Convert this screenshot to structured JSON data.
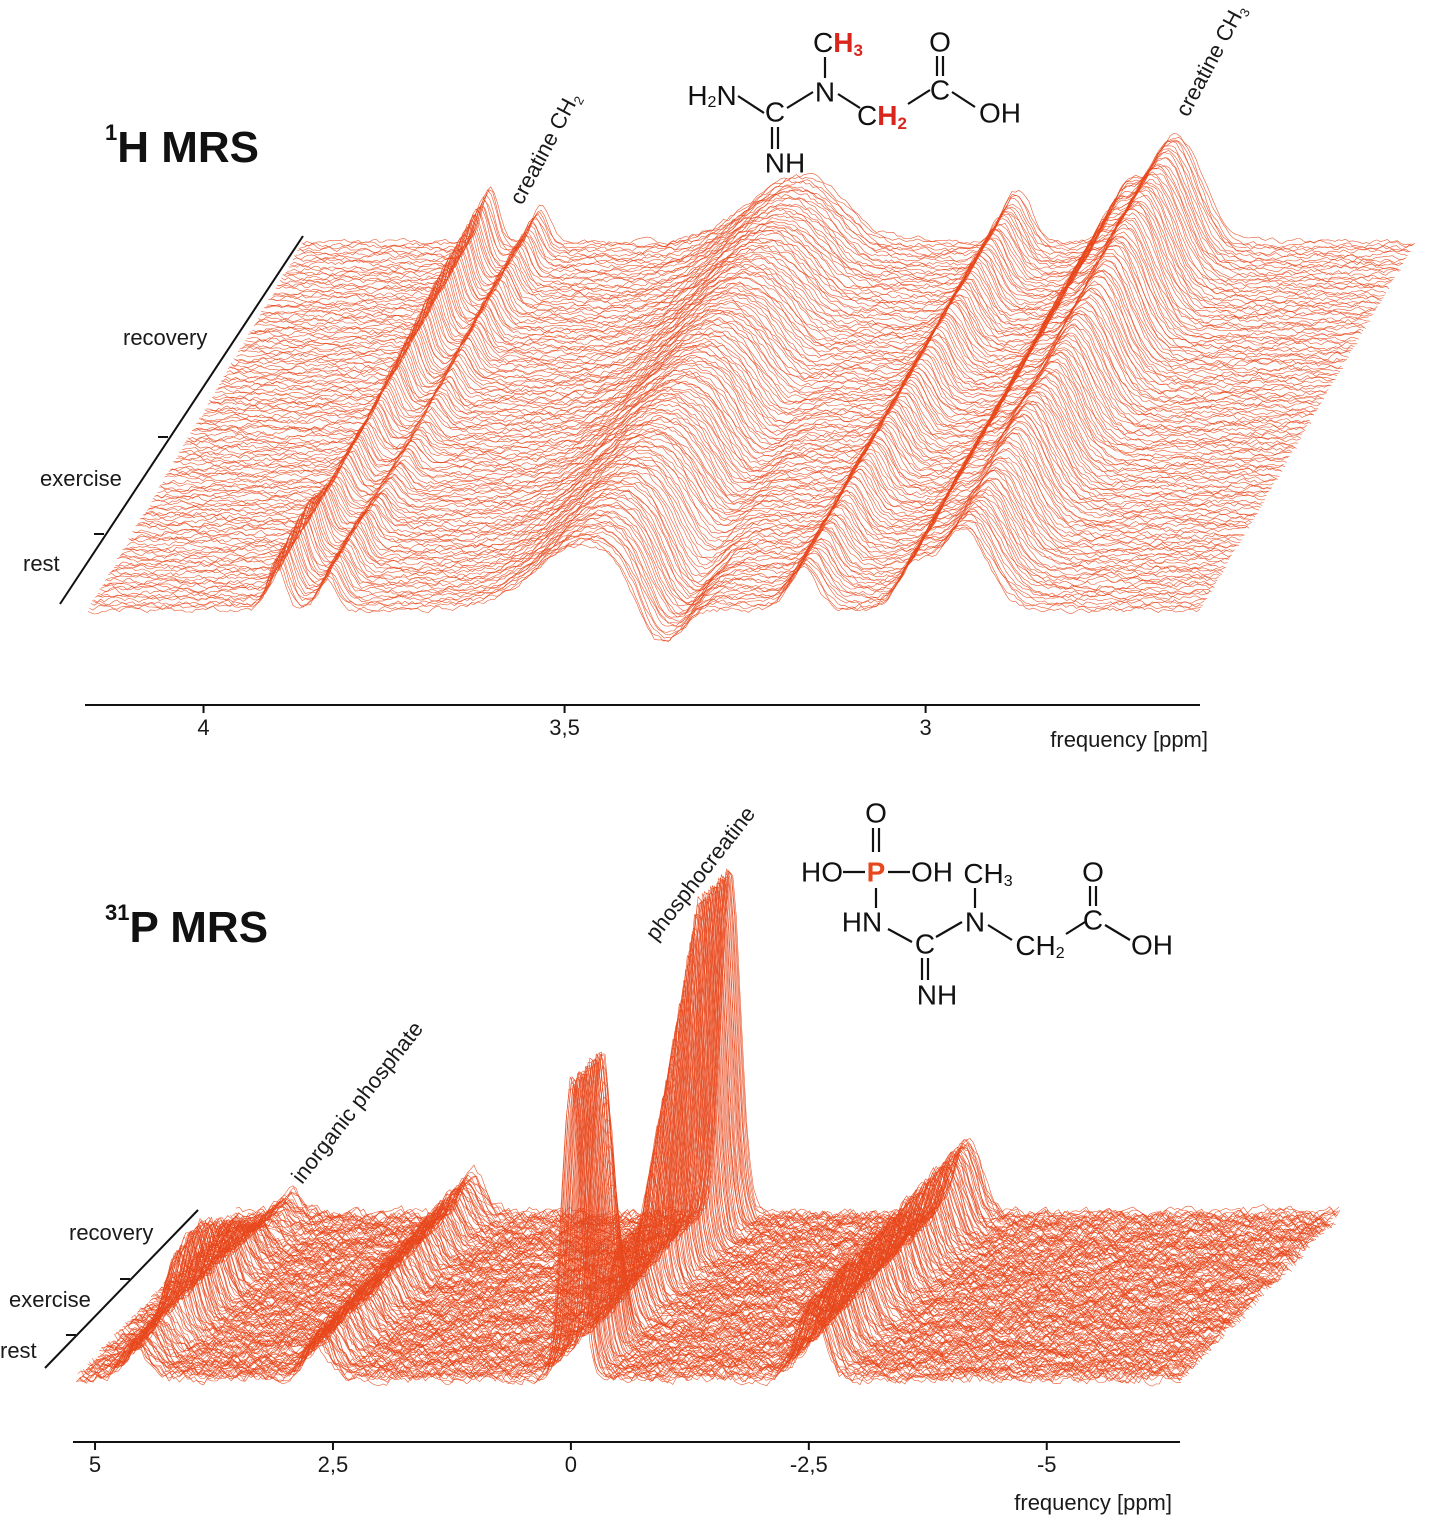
{
  "colors": {
    "trace": "#e8471c",
    "highlight": "#d9261c",
    "axis": "#111111"
  },
  "chart_data": [
    {
      "type": "line",
      "subtype": "waterfall",
      "title": "1H MRS",
      "title_nucleus": "1",
      "title_text": "H MRS",
      "xlabel": "frequency [ppm]",
      "xlim": [
        4.16,
        2.62
      ],
      "xticks": [
        4,
        3.5,
        3
      ],
      "xtick_labels": [
        "4",
        "3,5",
        "3"
      ],
      "time_axis_labels": [
        "rest",
        "exercise",
        "recovery"
      ],
      "phase_boundaries": [
        0.17,
        0.45
      ],
      "n_spectra": 150,
      "peak_labels": [
        {
          "text": "creatine CH",
          "sub": "2"
        },
        {
          "text": "creatine CH",
          "sub": "3"
        }
      ],
      "peaks": [
        {
          "ppm": 3.9,
          "width": 0.012,
          "amp": 0.45,
          "rest": 0.9,
          "exercise": 0.6,
          "recovery": 1.0
        },
        {
          "ppm": 3.83,
          "width": 0.012,
          "amp": 0.3,
          "rest": 0.9,
          "exercise": 0.6,
          "recovery": 1.0
        },
        {
          "ppm": 3.47,
          "width": 0.07,
          "amp": 0.55,
          "rest": 1.0,
          "exercise": 1.0,
          "recovery": 1.0
        },
        {
          "ppm": 3.37,
          "width": 0.03,
          "amp": -0.45,
          "rest": 1.0,
          "exercise": 0.6,
          "recovery": 0.2
        },
        {
          "ppm": 3.17,
          "width": 0.02,
          "amp": 0.35,
          "rest": 1.0,
          "exercise": 1.1,
          "recovery": 1.2
        },
        {
          "ppm": 3.02,
          "width": 0.02,
          "amp": 0.35,
          "rest": 0.9,
          "exercise": 1.0,
          "recovery": 1.1
        },
        {
          "ppm": 2.95,
          "width": 0.035,
          "amp": 0.75,
          "rest": 0.9,
          "exercise": 1.0,
          "recovery": 1.2
        }
      ]
    },
    {
      "type": "line",
      "subtype": "waterfall",
      "title": "31P MRS",
      "title_nucleus": "31",
      "title_text": "P MRS",
      "xlabel": "frequency [ppm]",
      "xlim": [
        5.2,
        -6.4
      ],
      "xticks": [
        5,
        2.5,
        0,
        -2.5,
        -5
      ],
      "xtick_labels": [
        "5",
        "2,5",
        "0",
        "-2,5",
        "-5"
      ],
      "time_axis_labels": [
        "rest",
        "exercise",
        "recovery"
      ],
      "phase_boundaries": [
        0.2,
        0.45
      ],
      "n_spectra": 180,
      "peak_labels": [
        {
          "text": "inorganic phosphate",
          "sub": ""
        },
        {
          "text": "phosphocreatine",
          "sub": ""
        }
      ],
      "peaks": [
        {
          "ppm": 4.6,
          "width": 0.12,
          "amp": 0.25,
          "rest": 0.4,
          "exercise": 1.0,
          "recovery": 0.25
        },
        {
          "ppm": 2.7,
          "width": 0.12,
          "amp": 0.12,
          "rest": 1.0,
          "exercise": 1.0,
          "recovery": 1.0
        },
        {
          "ppm": 0.0,
          "width": 0.1,
          "amp": 1.0,
          "rest": 0.9,
          "exercise": 0.25,
          "recovery": 1.05
        },
        {
          "ppm": -2.5,
          "width": 0.14,
          "amp": 0.22,
          "rest": 1.0,
          "exercise": 1.0,
          "recovery": 1.0
        }
      ]
    }
  ],
  "molecules": {
    "creatine": [
      "C",
      "H",
      "3",
      "H",
      "2",
      "N",
      "C",
      "NH",
      "C",
      "H",
      "2",
      "C",
      "O",
      "OH",
      "N"
    ],
    "phosphocreatine": [
      "O",
      "HO",
      "P",
      "OH",
      "HN",
      "C",
      "N",
      "CH",
      "3",
      "NH",
      "CH",
      "2",
      "C",
      "O",
      "OH"
    ]
  }
}
